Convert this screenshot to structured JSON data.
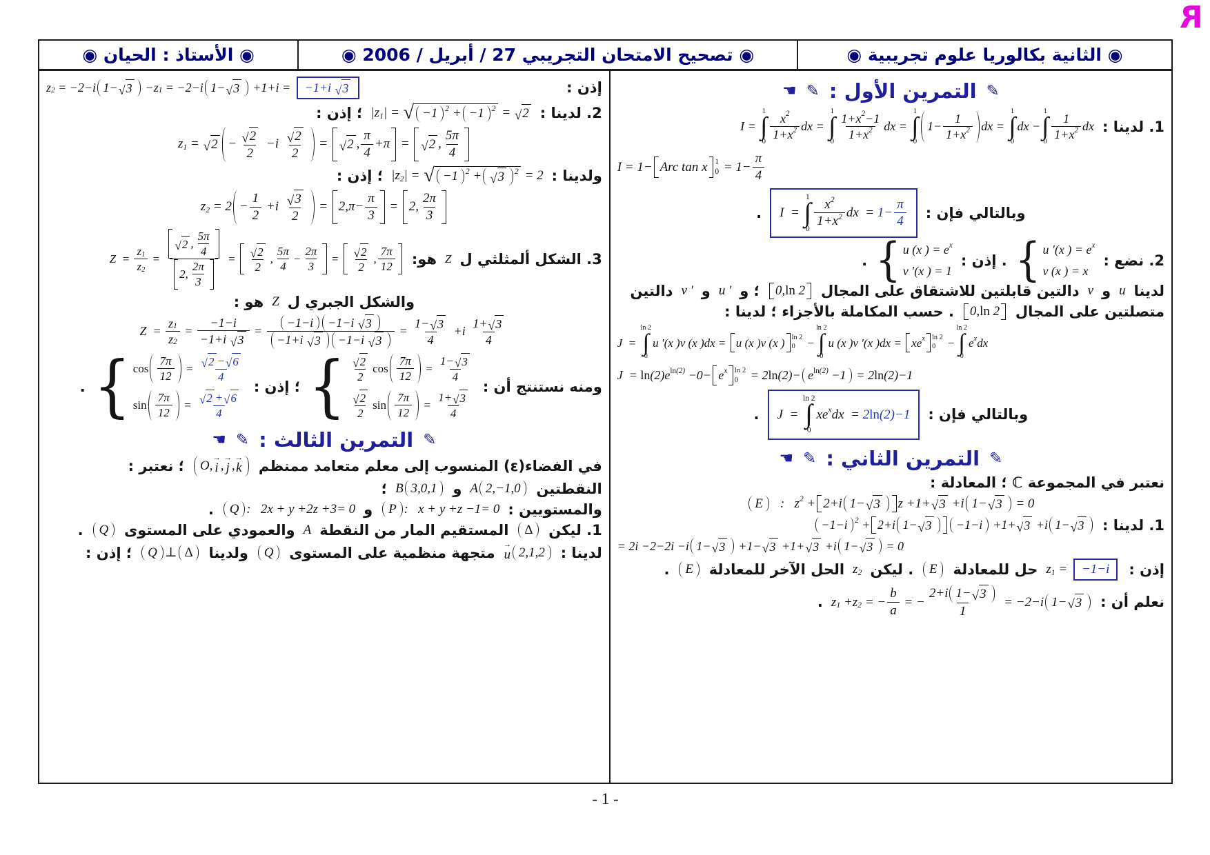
{
  "meta": {
    "footer_page": "- 1 -",
    "logo_letter": "R"
  },
  "colors": {
    "header_navy": "#00007d",
    "section_blue": "#1f1f9c",
    "result_blue": "#2334a6",
    "ink": "#151515",
    "border_dark": "#1b1b1b",
    "logo_magenta": "#e607da"
  },
  "decor": {
    "pen": "✎",
    "hand": "☚",
    "bullet": "◉"
  },
  "header": {
    "cells": [
      {
        "name": "class-level",
        "text": "◉ الثانية بكالوريا علوم تجريبية ◉"
      },
      {
        "name": "doc-title",
        "text": "◉ تصحيح الامتحان التجريبي 27 / أبريل / 2006 ◉"
      },
      {
        "name": "teacher",
        "text": "◉ الأستاذ : الحيان ◉"
      }
    ]
  },
  "columns": {
    "right": {
      "name": "column-exercises-1-2",
      "lines": [
        {
          "kind": "sec",
          "name": "section-exercise-1",
          "title": "التمرين الأول :"
        },
        {
          "kind": "row",
          "name": "ex1-q1-integral-decomposition",
          "align": "r",
          "fs": 18,
          "seg": [
            {
              "t": "1. لدينا :"
            },
            {
              "m": "I = @i{0}{1}@f{x^{2}}{1+x^{2}}dx = @i{0}{1}@f{1+x^{2}−1}{1+x^{2}}dx = @i{0}{1}@p{1−@f{1}{1+x^{2}}}dx = @i{0}{1}dx −@i{0}{1}@f{1}{1+x^{2}}dx"
            }
          ]
        },
        {
          "kind": "row",
          "name": "ex1-q1-arctan-eval",
          "align": "l",
          "fs": 19,
          "seg": [
            {
              "m": "I = 1−@b{Arc tan x}{0}{1} = 1−@f{π}{4}"
            }
          ]
        },
        {
          "kind": "row",
          "name": "ex1-q1-boxed-result",
          "align": "c",
          "fs": 19,
          "seg": [
            {
              "t": "وبالتالي فإن :"
            },
            {
              "m": "I  = @i{0}{1}@f{x^{2}}{1+x^{2}}dx  = @B{1−@f{π}{4}}",
              "box": true
            },
            {
              "t": "."
            }
          ]
        },
        {
          "kind": "row",
          "name": "ex1-q2-substitution",
          "align": "r",
          "fs": 18,
          "seg": [
            {
              "t": "2. نضع :"
            },
            {
              "m": "@c{u ′(x ) = e^{x}}{v (x ) = x}"
            },
            {
              "t": ". إذن :"
            },
            {
              "m": "@c{u (x ) = e^{x}}{v ′(x ) = 1}"
            },
            {
              "t": "."
            }
          ]
        },
        {
          "kind": "row",
          "name": "ex1-q2-differentiable-note",
          "align": "r",
          "seg": [
            {
              "t": "لدينا"
            },
            {
              "m": "u"
            },
            {
              "t": "و"
            },
            {
              "m": "v"
            },
            {
              "t": "دالتين قابلتين للاشتقاق على المجال"
            },
            {
              "m": "@b{0,@u{ln} 2}{}{}"
            },
            {
              "t": "؛ و"
            },
            {
              "m": "u ′"
            },
            {
              "t": "و"
            },
            {
              "m": "v ′"
            },
            {
              "t": "دالتين"
            }
          ]
        },
        {
          "kind": "row",
          "name": "ex1-q2-continuous-note",
          "align": "r",
          "seg": [
            {
              "t": "متصلتين على المجال"
            },
            {
              "m": "@b{0,@u{ln} 2}{}{}"
            },
            {
              "t": ". حسب المكاملة بالأجزاء ؛ لدينا :"
            }
          ]
        },
        {
          "kind": "row",
          "name": "ex1-q2-integration-by-parts",
          "align": "l",
          "fs": 17,
          "seg": [
            {
              "m": "J  = @i{0}{@u{ln} 2}u ′(x )v (x )dx = @b{u (x )v (x )}{0}{@u{ln} 2} −@i{0}{@u{ln} 2}u (x )v ′(x )dx = @b{xe^{x}}{0}{@u{ln} 2} −@i{0}{@u{ln} 2}e^{x}dx"
            }
          ]
        },
        {
          "kind": "row",
          "name": "ex1-q2-evaluation",
          "align": "l",
          "fs": 18,
          "seg": [
            {
              "m": "J  = @u{ln}(2)e^{@u{ln}(2)} −0−@b{e^{x}}{0}{@u{ln} 2} = 2@u{ln}(2)−@p{e^{@u{ln}(2)} −1} = 2@u{ln}(2)−1"
            }
          ]
        },
        {
          "kind": "row",
          "name": "ex1-q2-boxed-result",
          "align": "c",
          "fs": 19,
          "seg": [
            {
              "t": "وبالتالي فإن :"
            },
            {
              "m": "J  = @i{0}{@u{ln} 2}xe^{x}dx  = @B{2@u{ln}(2)−1}",
              "box": true
            },
            {
              "t": "."
            }
          ]
        },
        {
          "kind": "sec",
          "name": "section-exercise-2",
          "title": "التمرين الثاني :"
        },
        {
          "kind": "row",
          "name": "ex2-equation-intro",
          "align": "r",
          "seg": [
            {
              "t": "نعتبر في المجموعة ℂ ؛ المعادلة :"
            }
          ]
        },
        {
          "kind": "row",
          "name": "ex2-equation",
          "align": "c",
          "fs": 19,
          "seg": [
            {
              "m": "@p{E}   :   z^{2} +@b{2+i@p{1−@s{3}}}{}{}z +1+@s{3} +i@p{1−@s{3}} = 0"
            }
          ]
        },
        {
          "kind": "row",
          "name": "ex2-q1-substitute-z1",
          "align": "r",
          "fs": 18,
          "seg": [
            {
              "t": "1. لدينا :"
            },
            {
              "m": "@p{−1−i}^{2} +@b{2+i@p{1−@s{3}}}{}{}@p{−1−i} +1+@s{3} +i@p{1−@s{3}}"
            }
          ]
        },
        {
          "kind": "row",
          "name": "ex2-q1-simplification",
          "align": "l",
          "fs": 18,
          "seg": [
            {
              "m": "= 2i −2−2i −i@p{1−@s{3}} +1−@s{3} +1+@s{3} +i@p{1−@s{3}} = 0"
            }
          ]
        },
        {
          "kind": "row",
          "name": "ex2-q1-solution-note",
          "align": "r",
          "seg": [
            {
              "t": "إذن :"
            },
            {
              "m": "z_{1} = @X{−1−i}"
            },
            {
              "t": "حل للمعادلة"
            },
            {
              "m": "@p{E}"
            },
            {
              "t": ". ليكن"
            },
            {
              "m": "z_{2}"
            },
            {
              "t": "الحل الآخر للمعادلة"
            },
            {
              "m": "@p{E}"
            },
            {
              "t": "."
            }
          ]
        },
        {
          "kind": "row",
          "name": "ex2-sum-of-roots",
          "align": "r",
          "fs": 19,
          "seg": [
            {
              "t": "نعلم أن :"
            },
            {
              "m": "z_{1} +z_{2} = −@f{b}{a} = −@f{2+i@p{1−@s{3}}}{1} = −2−i@p{1−@s{3}}"
            },
            {
              "t": "."
            }
          ]
        }
      ]
    },
    "left": {
      "name": "column-exercises-2-3",
      "lines": [
        {
          "kind": "row",
          "name": "ex2-z2-computation",
          "align": "j",
          "fs": 18,
          "seg": [
            {
              "t": "إذن :"
            },
            {
              "m": "z_{2} = −2−i@p{1−@s{3}} −z_{1} = −2−i@p{1−@s{3}} +1+i = @X{−1+i @s{3}}"
            }
          ]
        },
        {
          "kind": "row",
          "name": "ex2-q2-modulus-z1",
          "align": "r",
          "fs": 19,
          "seg": [
            {
              "t": "2. لدينا :"
            },
            {
              "m": "|z_{1}| = @s{@p{−1}^{2} +@p{−1}^{2}} = @s{2}"
            },
            {
              "t": "؛ إذن :"
            }
          ]
        },
        {
          "kind": "row",
          "name": "ex2-q2-z1-trig-form",
          "align": "c",
          "fs": 19,
          "seg": [
            {
              "m": "z_{1} = @s{2}@p{−@f{@s{2}}{2} −i @f{@s{2}}{2}} = @b{@s{2},@f{π}{4}+π}{}{} = @b{@s{2},@f{5π}{4}}{}{}"
            }
          ]
        },
        {
          "kind": "row",
          "name": "ex2-q2-modulus-z2",
          "align": "r",
          "fs": 19,
          "seg": [
            {
              "t": "ولدينا :"
            },
            {
              "m": "|z_{2}| = @s{@p{−1}^{2} +@p{@s{3}}^{2}} = 2"
            },
            {
              "t": "؛ إذن :"
            }
          ]
        },
        {
          "kind": "row",
          "name": "ex2-q2-z2-trig-form",
          "align": "c",
          "fs": 19,
          "seg": [
            {
              "m": "z_{2} = 2@p{−@f{1}{2} +i @f{@s{3}}{2}} = @b{2,π−@f{π}{3}}{}{} = @b{2,@f{2π}{3}}{}{}"
            }
          ]
        },
        {
          "kind": "row",
          "name": "ex2-q3-trig-form-of-Z",
          "align": "r",
          "fs": 17,
          "seg": [
            {
              "t": "3. الشكل ألمثلثي ل"
            },
            {
              "m": "Z"
            },
            {
              "t": "هو:"
            },
            {
              "m": "Z  = @f{z_{1}}{z_{2}} = @f{@b{@s{2},@f{5π}{4}}{}{}}{@b{2,@f{2π}{3}}{}{}} = @b{@f{@s{2}}{2},@f{5π}{4}−@f{2π}{3}}{}{} = @b{@f{@s{2}}{2},@f{7π}{12}}{}{}"
            }
          ]
        },
        {
          "kind": "row",
          "name": "ex2-q3-algebraic-intro",
          "align": "c",
          "seg": [
            {
              "t": "والشكل الجبري ل"
            },
            {
              "m": "Z"
            },
            {
              "t": "هو :"
            }
          ]
        },
        {
          "kind": "row",
          "name": "ex2-q3-algebraic-form",
          "align": "c",
          "fs": 18,
          "seg": [
            {
              "m": "Z  = @f{z_{1}}{z_{2}} = @f{−1−i}{−1+i @s{3}} = @f{@p{−1−i}@p{−1−i @s{3}}}{@p{−1+i @s{3}}@p{−1−i @s{3}}} = @f{1−@s{3}}{4} +i @f{1+@s{3}}{4}"
            }
          ]
        },
        {
          "kind": "row",
          "name": "ex2-q3-cos-sin-conclusion",
          "align": "r",
          "fs": 17,
          "seg": [
            {
              "t": "ومنه نستنتج أن :"
            },
            {
              "m": "@c{@f{@s{2}}{2}@u{cos}@p{@f{7π}{12}} = @f{1−@s{3}}{4}}{@f{@s{2}}{2}@u{sin}@p{@f{7π}{12}} = @f{1+@s{3}}{4}}"
            },
            {
              "t": "؛ إذن :"
            },
            {
              "m": "@c{@u{cos}@p{@f{7π}{12}} = @B{@f{@s{2}−@s{6}}{4}}}{@u{sin}@p{@f{7π}{12}} = @B{@f{@s{2}+@s{6}}{4}}}"
            },
            {
              "t": "."
            }
          ]
        },
        {
          "kind": "sec",
          "name": "section-exercise-3",
          "title": "التمرين الثالث :"
        },
        {
          "kind": "row",
          "name": "ex3-space-frame-intro",
          "align": "r",
          "seg": [
            {
              "t": "في الفضاء(ε) المنسوب إلى معلم متعامد ممنظم"
            },
            {
              "m": "@p{O,@v{i},@v{j},@v{k}}"
            },
            {
              "t": "؛ نعتبر :"
            }
          ]
        },
        {
          "kind": "row",
          "name": "ex3-points",
          "align": "r",
          "seg": [
            {
              "t": "النقطتين"
            },
            {
              "m": "A@p{2,−1,0}"
            },
            {
              "t": "و"
            },
            {
              "m": "B@p{3,0,1}"
            },
            {
              "t": "؛"
            }
          ]
        },
        {
          "kind": "row",
          "name": "ex3-planes",
          "align": "r",
          "fs": 19,
          "seg": [
            {
              "t": "والمستويين :"
            },
            {
              "m": "@p{P}:   x + y +z −1= 0"
            },
            {
              "t": "و"
            },
            {
              "m": "@p{Q}:   2x + y +2z +3= 0"
            },
            {
              "t": "."
            }
          ]
        },
        {
          "kind": "row",
          "name": "ex3-q1-line-definition",
          "align": "r",
          "seg": [
            {
              "t": "1. ليكن"
            },
            {
              "m": "@p{@u{Δ}}"
            },
            {
              "t": "المستقيم المار من النقطة"
            },
            {
              "m": "A"
            },
            {
              "t": "والعمودي على المستوى"
            },
            {
              "m": "@p{Q}"
            },
            {
              "t": "."
            }
          ]
        },
        {
          "kind": "row",
          "name": "ex3-q1-normal-vector",
          "align": "r",
          "seg": [
            {
              "t": "لدينا :"
            },
            {
              "m": "@v{u}@p{2,1,2}"
            },
            {
              "t": "متجهة منظمية على المستوى"
            },
            {
              "m": "@p{Q}"
            },
            {
              "t": "ولدينا"
            },
            {
              "m": "@p{Q}⊥@p{@u{Δ}}"
            },
            {
              "t": "؛ إذن :"
            }
          ]
        }
      ]
    }
  }
}
